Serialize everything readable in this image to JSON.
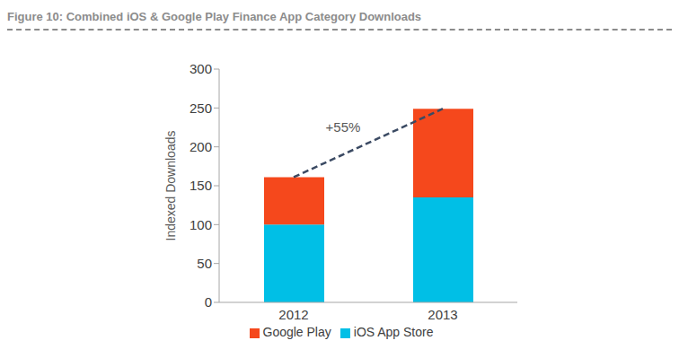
{
  "chart_data": {
    "type": "bar",
    "title": "Figure 10: Combined iOS & Google Play Finance App Category Downloads",
    "y_label": "Indexed Downloads",
    "categories": [
      "2012",
      "2013"
    ],
    "series": [
      {
        "name": "iOS App Store",
        "color": "#00bfe6",
        "values": [
          100,
          135
        ]
      },
      {
        "name": "Google Play",
        "color": "#f5481c",
        "values": [
          61,
          114
        ]
      }
    ],
    "ylim": [
      0,
      300
    ],
    "yticks": [
      0,
      50,
      100,
      150,
      200,
      250,
      300
    ],
    "stacked": true,
    "grid": false,
    "legend": "bottom",
    "annotations": [
      {
        "text": "+55%"
      }
    ]
  }
}
